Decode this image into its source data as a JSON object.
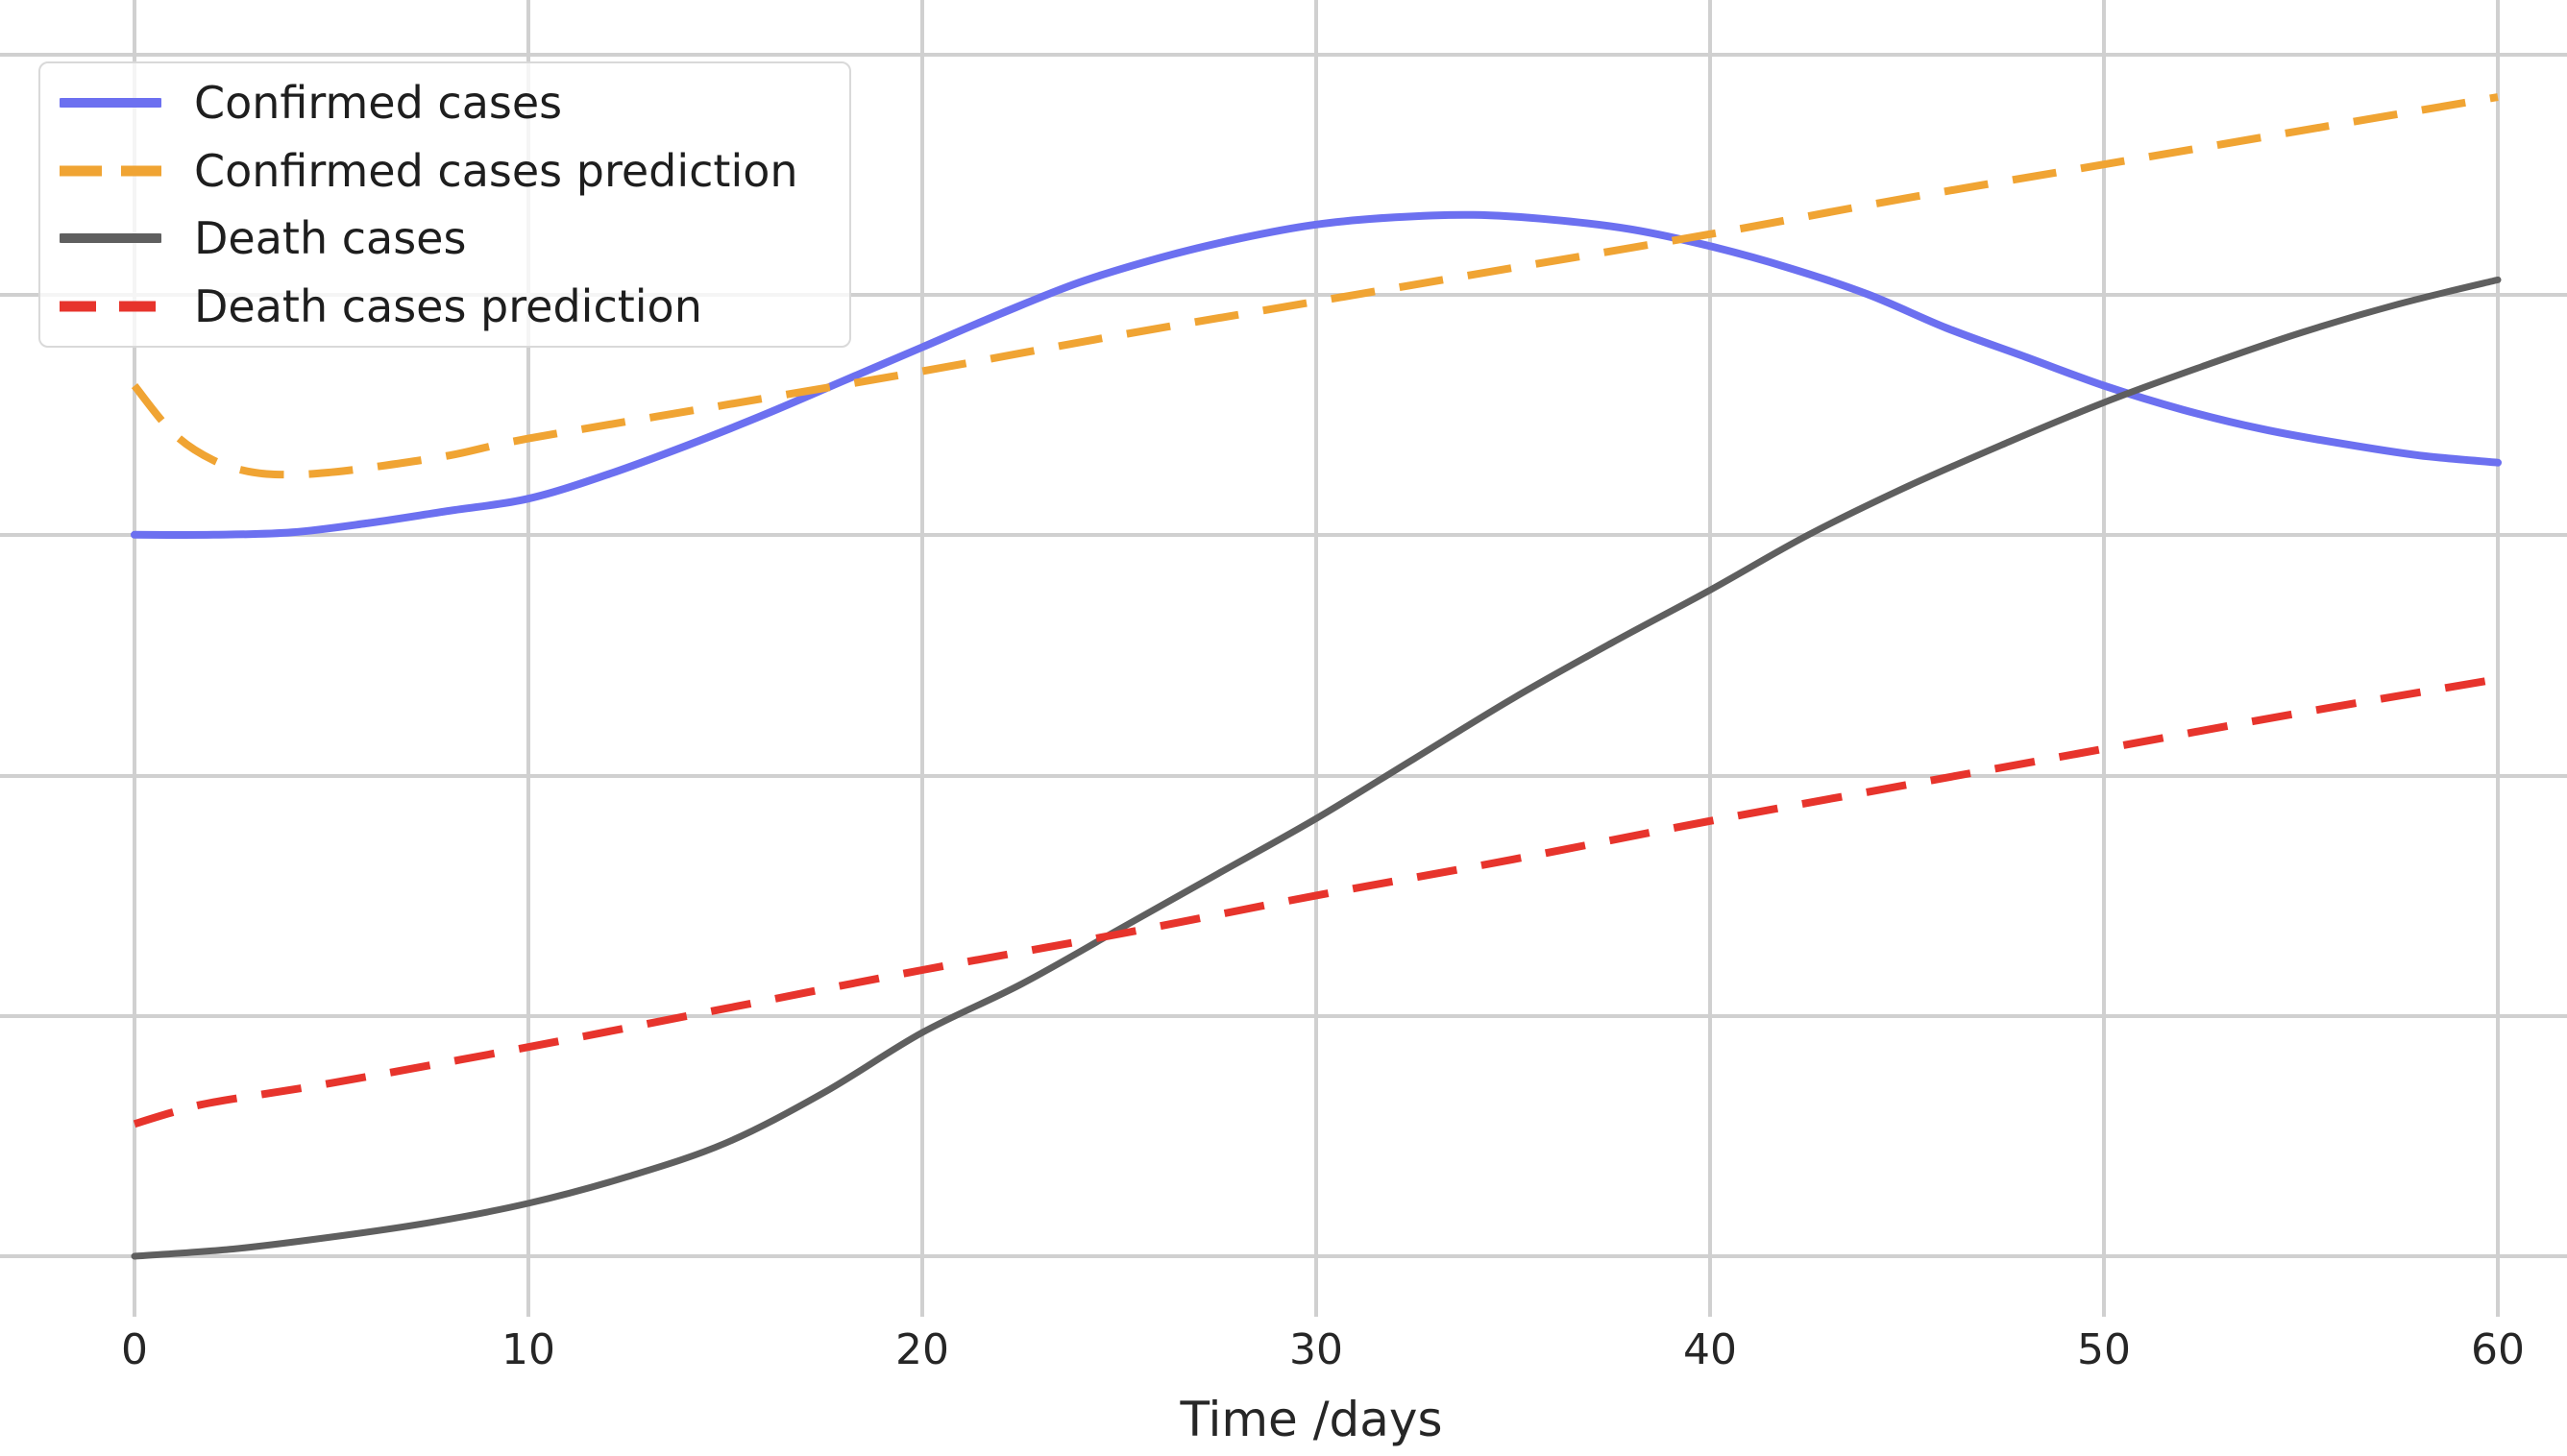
{
  "chart": {
    "x_axis": {
      "label": "Time /days",
      "ticks": [
        "0",
        "10",
        "20",
        "30",
        "40",
        "50",
        "60"
      ]
    },
    "colors": {
      "confirmed": "#6c70f0",
      "confirmed_prediction": "#f0a433",
      "death": "#5f5f5f",
      "death_prediction": "#e7342c",
      "gridline": "#d0d0d0",
      "text": "#262626",
      "background": "#ffffff",
      "legend_border": "#d9d9d9"
    }
  },
  "chart_data": {
    "type": "line",
    "title": "",
    "xlabel": "Time /days",
    "ylabel": "",
    "x_ticks": [
      0,
      10,
      20,
      30,
      40,
      50,
      60
    ],
    "xlim": [
      -3.4,
      61.8
    ],
    "ylim": [
      -0.26,
      5.02
    ],
    "y_axis_note": "y tick labels are cropped out of the image; y values below are in units of horizontal gridline spacing, 0 = bottom gridline",
    "grid": true,
    "legend_position": "upper left",
    "series": [
      {
        "name": "Confirmed cases",
        "color": "#6c70f0",
        "dash": "solid",
        "points": [
          [
            0,
            3.0
          ],
          [
            2,
            3.0
          ],
          [
            4,
            3.01
          ],
          [
            6,
            3.05
          ],
          [
            8,
            3.1
          ],
          [
            10,
            3.15
          ],
          [
            12,
            3.25
          ],
          [
            14,
            3.37
          ],
          [
            16,
            3.5
          ],
          [
            18,
            3.64
          ],
          [
            20,
            3.78
          ],
          [
            22,
            3.92
          ],
          [
            24,
            4.05
          ],
          [
            26,
            4.15
          ],
          [
            28,
            4.23
          ],
          [
            30,
            4.29
          ],
          [
            32,
            4.32
          ],
          [
            34,
            4.33
          ],
          [
            36,
            4.31
          ],
          [
            38,
            4.27
          ],
          [
            40,
            4.2
          ],
          [
            42,
            4.11
          ],
          [
            44,
            4.0
          ],
          [
            46,
            3.86
          ],
          [
            48,
            3.74
          ],
          [
            50,
            3.62
          ],
          [
            52,
            3.52
          ],
          [
            54,
            3.44
          ],
          [
            56,
            3.38
          ],
          [
            58,
            3.33
          ],
          [
            60,
            3.3
          ]
        ]
      },
      {
        "name": "Confirmed cases prediction",
        "color": "#f0a433",
        "dash": "dashed",
        "points": [
          [
            0,
            3.62
          ],
          [
            1,
            3.42
          ],
          [
            2,
            3.31
          ],
          [
            3,
            3.26
          ],
          [
            4,
            3.25
          ],
          [
            5,
            3.26
          ],
          [
            6,
            3.28
          ],
          [
            8,
            3.33
          ],
          [
            10,
            3.4
          ],
          [
            15,
            3.54
          ],
          [
            20,
            3.68
          ],
          [
            25,
            3.83
          ],
          [
            30,
            3.97
          ],
          [
            35,
            4.11
          ],
          [
            40,
            4.25
          ],
          [
            45,
            4.4
          ],
          [
            50,
            4.54
          ],
          [
            55,
            4.68
          ],
          [
            60,
            4.82
          ]
        ]
      },
      {
        "name": "Death cases",
        "color": "#5f5f5f",
        "dash": "solid",
        "points": [
          [
            0,
            0.0
          ],
          [
            2.5,
            0.03
          ],
          [
            5,
            0.08
          ],
          [
            7.5,
            0.14
          ],
          [
            10,
            0.22
          ],
          [
            12.5,
            0.33
          ],
          [
            15,
            0.47
          ],
          [
            17.5,
            0.68
          ],
          [
            20,
            0.93
          ],
          [
            22.5,
            1.13
          ],
          [
            25,
            1.36
          ],
          [
            27.5,
            1.59
          ],
          [
            30,
            1.82
          ],
          [
            32.5,
            2.07
          ],
          [
            35,
            2.32
          ],
          [
            37.5,
            2.55
          ],
          [
            40,
            2.77
          ],
          [
            42.5,
            3.0
          ],
          [
            45,
            3.2
          ],
          [
            47.5,
            3.38
          ],
          [
            50,
            3.55
          ],
          [
            52.5,
            3.7
          ],
          [
            55,
            3.84
          ],
          [
            57.5,
            3.96
          ],
          [
            60,
            4.06
          ]
        ]
      },
      {
        "name": "Death cases prediction",
        "color": "#e7342c",
        "dash": "dashed",
        "points": [
          [
            0,
            0.55
          ],
          [
            1,
            0.6
          ],
          [
            2,
            0.64
          ],
          [
            5,
            0.72
          ],
          [
            10,
            0.87
          ],
          [
            15,
            1.03
          ],
          [
            20,
            1.19
          ],
          [
            25,
            1.34
          ],
          [
            30,
            1.5
          ],
          [
            35,
            1.65
          ],
          [
            40,
            1.81
          ],
          [
            45,
            1.96
          ],
          [
            50,
            2.11
          ],
          [
            55,
            2.26
          ],
          [
            60,
            2.4
          ]
        ]
      }
    ]
  }
}
